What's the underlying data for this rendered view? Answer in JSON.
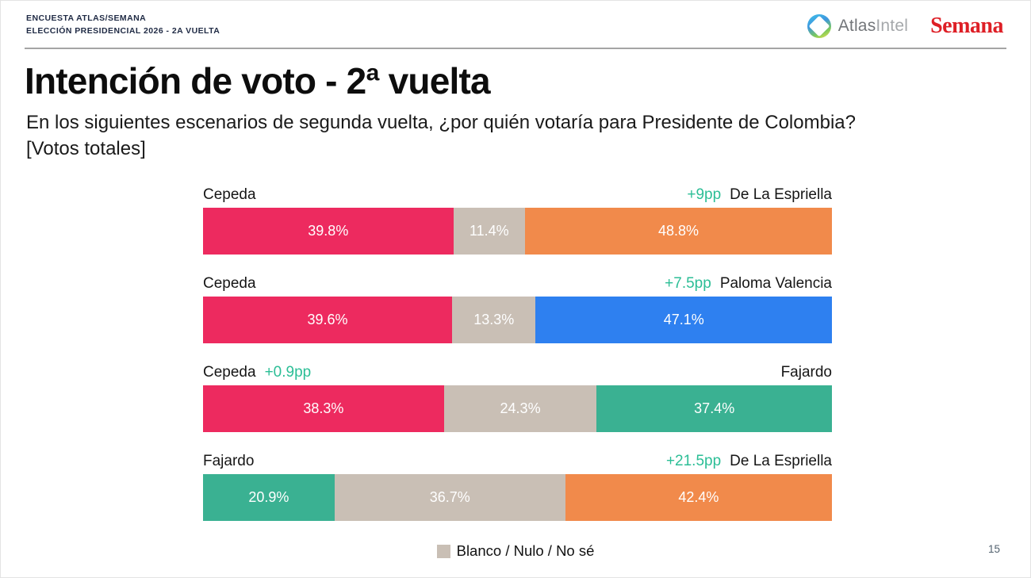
{
  "header": {
    "kicker_line1": "ENCUESTA ATLAS/SEMANA",
    "kicker_line2": "ELECCIÓN PRESIDENCIAL 2026 - 2a VUELTA",
    "atlas_logo": {
      "atlas": "Atlas",
      "intel": "Intel"
    },
    "semana_logo": "Semana"
  },
  "title": "Intención de voto - 2ª vuelta",
  "subtitle": {
    "line1": "En los siguientes escenarios de segunda vuelta, ¿por quién votaría para Presidente de Colombia?",
    "line2": "[Votos totales]"
  },
  "chart_data": {
    "type": "bar",
    "orientation": "horizontal_stacked",
    "unit": "%",
    "categories": [
      "Cepeda vs De La Espriella",
      "Cepeda vs Paloma Valencia",
      "Cepeda vs Fajardo",
      "Fajardo vs De La Espriella"
    ],
    "scenarios": [
      {
        "left_label": "Cepeda",
        "right_label": "De La Espriella",
        "lead": "+9pp",
        "lead_side": "right",
        "segments": [
          {
            "name": "Cepeda",
            "value": 39.8,
            "color": "#ED2A5F"
          },
          {
            "name": "Blanco / Nulo / No sé",
            "value": 11.4,
            "color": "#C9BFB5"
          },
          {
            "name": "De La Espriella",
            "value": 48.8,
            "color": "#F18A4B"
          }
        ]
      },
      {
        "left_label": "Cepeda",
        "right_label": "Paloma Valencia",
        "lead": "+7.5pp",
        "lead_side": "right",
        "segments": [
          {
            "name": "Cepeda",
            "value": 39.6,
            "color": "#ED2A5F"
          },
          {
            "name": "Blanco / Nulo / No sé",
            "value": 13.3,
            "color": "#C9BFB5"
          },
          {
            "name": "Paloma Valencia",
            "value": 47.1,
            "color": "#2E80F0"
          }
        ]
      },
      {
        "left_label": "Cepeda",
        "right_label": "Fajardo",
        "lead": "+0.9pp",
        "lead_side": "left",
        "segments": [
          {
            "name": "Cepeda",
            "value": 38.3,
            "color": "#ED2A5F"
          },
          {
            "name": "Blanco / Nulo / No sé",
            "value": 24.3,
            "color": "#C9BFB5"
          },
          {
            "name": "Fajardo",
            "value": 37.4,
            "color": "#3AB192"
          }
        ]
      },
      {
        "left_label": "Fajardo",
        "right_label": "De La Espriella",
        "lead": "+21.5pp",
        "lead_side": "right",
        "segments": [
          {
            "name": "Fajardo",
            "value": 20.9,
            "color": "#3AB192"
          },
          {
            "name": "Blanco / Nulo / No sé",
            "value": 36.7,
            "color": "#C9BFB5"
          },
          {
            "name": "De La Espriella",
            "value": 42.4,
            "color": "#F18A4B"
          }
        ]
      }
    ],
    "legend": {
      "label": "Blanco / Nulo / No sé",
      "color": "#C9BFB5",
      "position": "bottom-center"
    }
  },
  "footer": {
    "page_number": "15"
  },
  "colors": {
    "cepeda_pink": "#ED2A5F",
    "blanco_tan": "#C9BFB5",
    "espriella_orange": "#F18A4B",
    "valencia_blue": "#2E80F0",
    "fajardo_teal": "#3AB192",
    "lead_green": "#2CBE96",
    "header_navy": "#1F2A44",
    "semana_red": "#DE1F26",
    "divider_gray": "#A5A5A5"
  }
}
